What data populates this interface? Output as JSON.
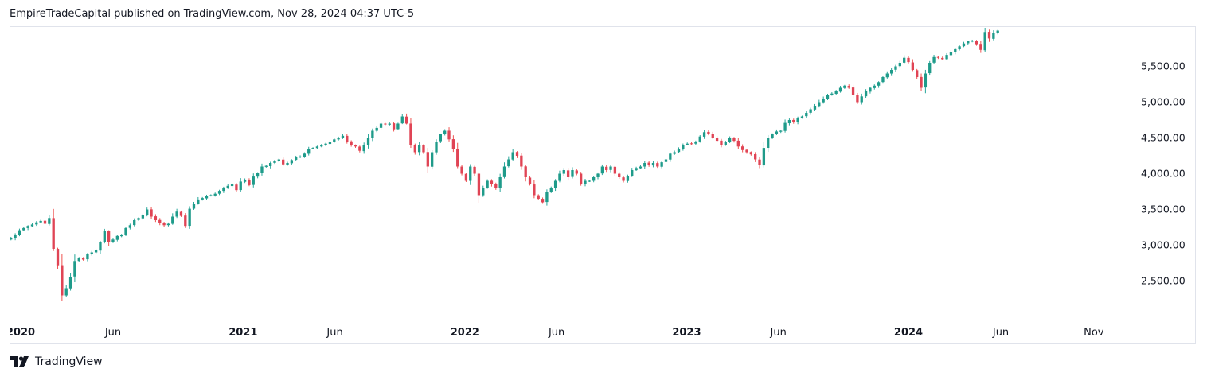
{
  "header": {
    "published_line": "EmpireTradeCapital published on TradingView.com, Nov 28, 2024 04:37 UTC-5"
  },
  "footer": {
    "brand": "TradingView",
    "logo_icon": "tradingview-logo-icon"
  },
  "colors": {
    "up": "#26a69a",
    "down": "#ef5350",
    "up_body": "#1f9b8a",
    "down_body": "#e04455",
    "axis_text": "#131722",
    "border": "#e0e3eb"
  },
  "chart_data": {
    "type": "candlestick",
    "interval": "weekly",
    "y_axis": {
      "ticks": [
        2500,
        3000,
        3500,
        4000,
        4500,
        5000,
        5500
      ],
      "tick_labels": [
        "2,500.00",
        "3,000.00",
        "3,500.00",
        "4,000.00",
        "4,500.00",
        "5,000.00",
        "5,500.00"
      ],
      "range": [
        2050,
        6050
      ]
    },
    "x_axis": {
      "range": [
        "2019-12-15",
        "2024-12-25"
      ],
      "ticks": [
        {
          "date": "2020-01-01",
          "label": "2020",
          "bold": true
        },
        {
          "date": "2020-06-01",
          "label": "Jun",
          "bold": false
        },
        {
          "date": "2021-01-01",
          "label": "2021",
          "bold": true
        },
        {
          "date": "2021-06-01",
          "label": "Jun",
          "bold": false
        },
        {
          "date": "2022-01-01",
          "label": "2022",
          "bold": true
        },
        {
          "date": "2022-06-01",
          "label": "Jun",
          "bold": false
        },
        {
          "date": "2023-01-01",
          "label": "2023",
          "bold": true
        },
        {
          "date": "2023-06-01",
          "label": "Jun",
          "bold": false
        },
        {
          "date": "2024-01-01",
          "label": "2024",
          "bold": true
        },
        {
          "date": "2024-06-01",
          "label": "Jun",
          "bold": false
        },
        {
          "date": "2024-11-01",
          "label": "Nov",
          "bold": false
        }
      ]
    },
    "series": [
      {
        "name": "",
        "start": "2019-12-16",
        "step_days": 7,
        "close": [
          3100,
          3150,
          3210,
          3240,
          3270,
          3290,
          3320,
          3340,
          3300,
          3380,
          2950,
          2720,
          2300,
          2400,
          2560,
          2780,
          2820,
          2800,
          2880,
          2900,
          2930,
          3040,
          3200,
          3050,
          3080,
          3130,
          3150,
          3240,
          3280,
          3350,
          3380,
          3420,
          3500,
          3400,
          3350,
          3310,
          3280,
          3300,
          3400,
          3470,
          3410,
          3270,
          3510,
          3580,
          3640,
          3660,
          3690,
          3700,
          3720,
          3760,
          3800,
          3830,
          3850,
          3770,
          3890,
          3910,
          3840,
          3960,
          4010,
          4100,
          4110,
          4150,
          4180,
          4200,
          4130,
          4150,
          4190,
          4230,
          4240,
          4280,
          4350,
          4360,
          4380,
          4400,
          4420,
          4450,
          4480,
          4500,
          4530,
          4450,
          4400,
          4380,
          4320,
          4400,
          4500,
          4600,
          4640,
          4700,
          4690,
          4700,
          4620,
          4700,
          4800,
          4700,
          4400,
          4300,
          4400,
          4300,
          4100,
          4300,
          4450,
          4550,
          4600,
          4480,
          4350,
          4100,
          4000,
          3900,
          4100,
          4000,
          3700,
          3800,
          3900,
          3850,
          3800,
          3950,
          4100,
          4200,
          4300,
          4250,
          4100,
          3950,
          3850,
          3700,
          3650,
          3600,
          3750,
          3800,
          3900,
          4000,
          4050,
          3950,
          4050,
          4000,
          3850,
          3900,
          3900,
          3950,
          4000,
          4100,
          4050,
          4100,
          4000,
          3950,
          3900,
          3970,
          4050,
          4080,
          4100,
          4150,
          4120,
          4150,
          4100,
          4160,
          4200,
          4280,
          4300,
          4350,
          4400,
          4420,
          4420,
          4450,
          4520,
          4580,
          4560,
          4500,
          4460,
          4400,
          4450,
          4500,
          4460,
          4380,
          4330,
          4300,
          4270,
          4200,
          4120,
          4360,
          4500,
          4550,
          4590,
          4600,
          4710,
          4750,
          4720,
          4780,
          4800,
          4850,
          4900,
          4950,
          5000,
          5050,
          5100,
          5120,
          5150,
          5200,
          5230,
          5200,
          5100,
          5000,
          5080,
          5150,
          5200,
          5230,
          5280,
          5350,
          5400,
          5450,
          5500,
          5550,
          5620,
          5560,
          5450,
          5350,
          5200,
          5400,
          5550,
          5630,
          5620,
          5600,
          5660,
          5700,
          5740,
          5780,
          5820,
          5850,
          5860,
          5810,
          5730,
          5980,
          5890,
          5970,
          6000
        ]
      }
    ]
  }
}
